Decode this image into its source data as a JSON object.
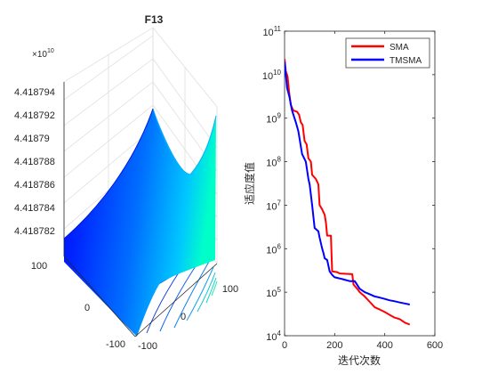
{
  "chart_data": [
    {
      "type": "surface",
      "title": "F13",
      "z_scale_label": "×10",
      "z_scale_exponent": "10",
      "z_ticks": [
        "4.418782",
        "4.418784",
        "4.418786",
        "4.418788",
        "4.41879",
        "4.418792",
        "4.418794"
      ],
      "x_ticks": [
        "-100",
        "0",
        "100"
      ],
      "y_ticks": [
        "-100",
        "0",
        "100"
      ],
      "colormap": [
        "#0000ff",
        "#0070ff",
        "#00c8ff",
        "#00ffc8"
      ],
      "contours": true
    },
    {
      "type": "line",
      "xlabel": "迭代次数",
      "ylabel": "适应度值",
      "xlim": [
        0,
        600
      ],
      "x_ticks": [
        "0",
        "200",
        "400",
        "600"
      ],
      "y_scale": "log",
      "ylim": [
        10000,
        100000000000
      ],
      "y_tick_exponents": [
        "4",
        "5",
        "6",
        "7",
        "8",
        "9",
        "10",
        "11"
      ],
      "y_tick_base": "10",
      "legend_position": "top-right",
      "series": [
        {
          "name": "SMA",
          "color": "#ff0000",
          "points": [
            [
              0,
              23000000000
            ],
            [
              5,
              12000000000
            ],
            [
              12,
              9000000000
            ],
            [
              18,
              4000000000
            ],
            [
              25,
              2000000000
            ],
            [
              35,
              1500000000
            ],
            [
              50,
              1400000000
            ],
            [
              58,
              1200000000
            ],
            [
              65,
              800000000
            ],
            [
              72,
              700000000
            ],
            [
              80,
              300000000
            ],
            [
              88,
              250000000
            ],
            [
              95,
              120000000
            ],
            [
              105,
              100000000
            ],
            [
              110,
              50000000
            ],
            [
              125,
              40000000
            ],
            [
              135,
              30000000
            ],
            [
              140,
              10000000
            ],
            [
              150,
              8000000
            ],
            [
              160,
              6000000
            ],
            [
              165,
              4000000
            ],
            [
              170,
              2000000
            ],
            [
              185,
              2000000
            ],
            [
              190,
              300000
            ],
            [
              210,
              290000
            ],
            [
              220,
              270000
            ],
            [
              270,
              260000
            ],
            [
              275,
              150000
            ],
            [
              290,
              120000
            ],
            [
              300,
              100000
            ],
            [
              320,
              80000
            ],
            [
              340,
              60000
            ],
            [
              360,
              45000
            ],
            [
              380,
              40000
            ],
            [
              400,
              35000
            ],
            [
              420,
              30000
            ],
            [
              440,
              26000
            ],
            [
              460,
              24000
            ],
            [
              480,
              20000
            ],
            [
              500,
              18000
            ]
          ]
        },
        {
          "name": "TMSMA",
          "color": "#0000ff",
          "points": [
            [
              0,
              20000000000
            ],
            [
              5,
              10000000000
            ],
            [
              10,
              5000000000
            ],
            [
              20,
              3000000000
            ],
            [
              30,
              1500000000
            ],
            [
              45,
              800000000
            ],
            [
              55,
              500000000
            ],
            [
              70,
              150000000
            ],
            [
              85,
              100000000
            ],
            [
              95,
              40000000
            ],
            [
              100,
              30000000
            ],
            [
              110,
              10000000
            ],
            [
              120,
              3000000
            ],
            [
              135,
              2500000
            ],
            [
              140,
              1800000
            ],
            [
              150,
              1000000
            ],
            [
              155,
              800000
            ],
            [
              160,
              600000
            ],
            [
              170,
              550000
            ],
            [
              180,
              300000
            ],
            [
              190,
              250000
            ],
            [
              200,
              220000
            ],
            [
              215,
              210000
            ],
            [
              230,
              200000
            ],
            [
              260,
              180000
            ],
            [
              280,
              180000
            ],
            [
              300,
              120000
            ],
            [
              320,
              100000
            ],
            [
              340,
              90000
            ],
            [
              360,
              80000
            ],
            [
              380,
              75000
            ],
            [
              400,
              70000
            ],
            [
              420,
              65000
            ],
            [
              440,
              62000
            ],
            [
              460,
              58000
            ],
            [
              480,
              55000
            ],
            [
              500,
              52000
            ]
          ]
        }
      ]
    }
  ]
}
